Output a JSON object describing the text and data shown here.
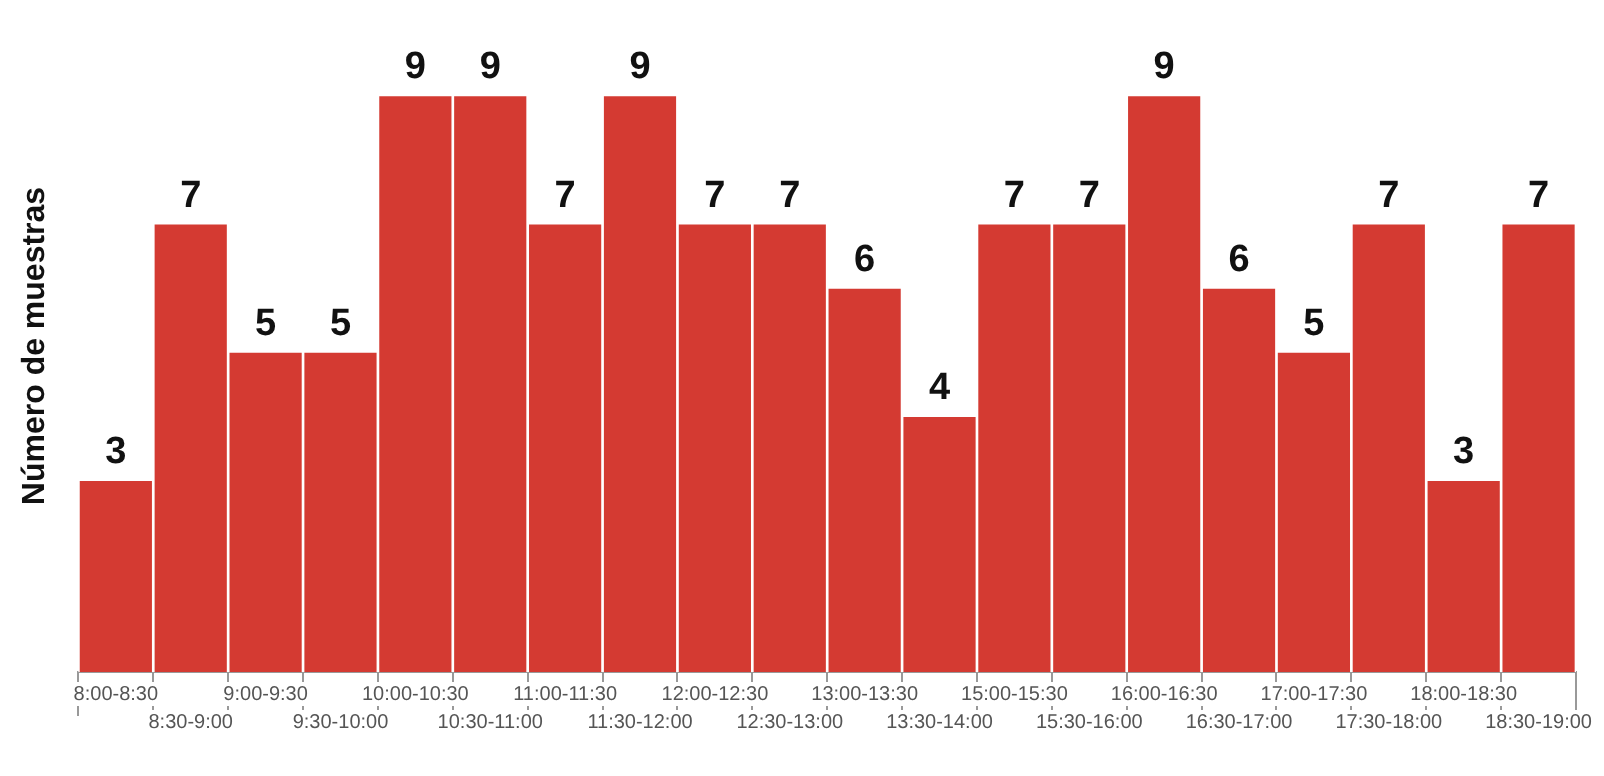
{
  "chart_data": {
    "type": "bar",
    "ylabel": "Número de muestras",
    "categories": [
      "8:00-8:30",
      "8:30-9:00",
      "9:00-9:30",
      "9:30-10:00",
      "10:00-10:30",
      "10:30-11:00",
      "11:00-11:30",
      "11:30-12:00",
      "12:00-12:30",
      "12:30-13:00",
      "13:00-13:30",
      "13:30-14:00",
      "15:00-15:30",
      "15:30-16:00",
      "16:00-16:30",
      "16:30-17:00",
      "17:00-17:30",
      "17:30-18:00",
      "18:00-18:30",
      "18:30-19:00"
    ],
    "values": [
      3,
      7,
      5,
      5,
      9,
      9,
      7,
      9,
      7,
      7,
      6,
      4,
      7,
      7,
      9,
      6,
      5,
      7,
      3,
      7
    ],
    "color": "#d43a32",
    "data_labels": true,
    "grid": false,
    "legend": false
  }
}
